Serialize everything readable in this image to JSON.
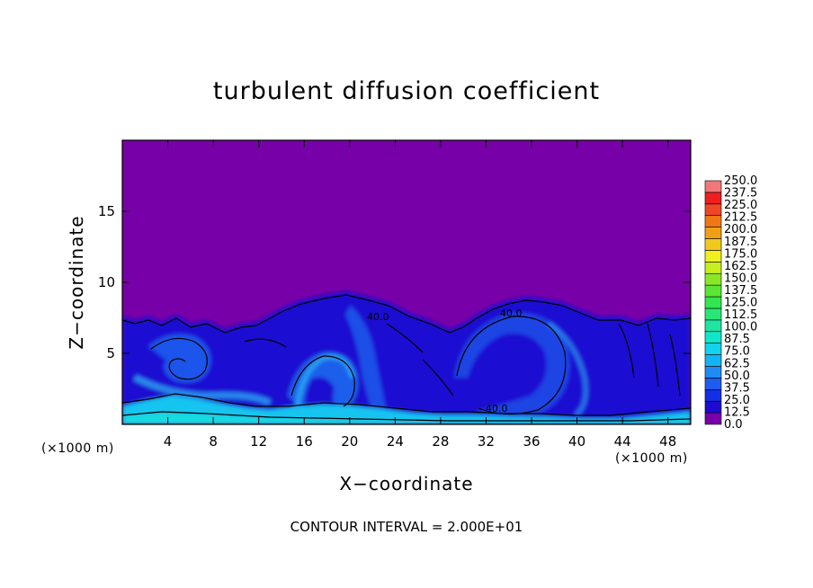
{
  "chart_data": {
    "type": "heatmap",
    "title": "turbulent diffusion coefficient",
    "xlabel": "X−coordinate",
    "ylabel": "Z−coordinate",
    "x_unit": "(×1000 m)",
    "z_unit": "(×1000 m)",
    "xlim": [
      0,
      50
    ],
    "ylim": [
      0,
      20
    ],
    "x_ticks": [
      4,
      8,
      12,
      16,
      20,
      24,
      28,
      32,
      36,
      40,
      44,
      48
    ],
    "y_ticks": [
      5,
      10,
      15
    ],
    "colorbar": {
      "levels": [
        "0.0",
        "12.5",
        "25.0",
        "37.5",
        "50.0",
        "62.5",
        "75.0",
        "87.5",
        "100.0",
        "112.5",
        "125.0",
        "137.5",
        "150.0",
        "162.5",
        "175.0",
        "187.5",
        "200.0",
        "212.5",
        "225.0",
        "237.5",
        "250.0"
      ],
      "colors": [
        "#7800a8",
        "#1e0ad0",
        "#1430e6",
        "#1e5cf0",
        "#1e8cf4",
        "#14b4f4",
        "#12d2ec",
        "#12e6c8",
        "#1ee6a0",
        "#28e678",
        "#32e650",
        "#5ae632",
        "#8ce628",
        "#c8ee1e",
        "#f0f01e",
        "#f0c81e",
        "#f0a014",
        "#f07814",
        "#f04628",
        "#f01e1e",
        "#f07878"
      ]
    },
    "contour_labels": [
      "40.0",
      "40.0",
      "40.0"
    ],
    "annotation": "CONTOUR INTERVAL = 2.000E+01"
  }
}
